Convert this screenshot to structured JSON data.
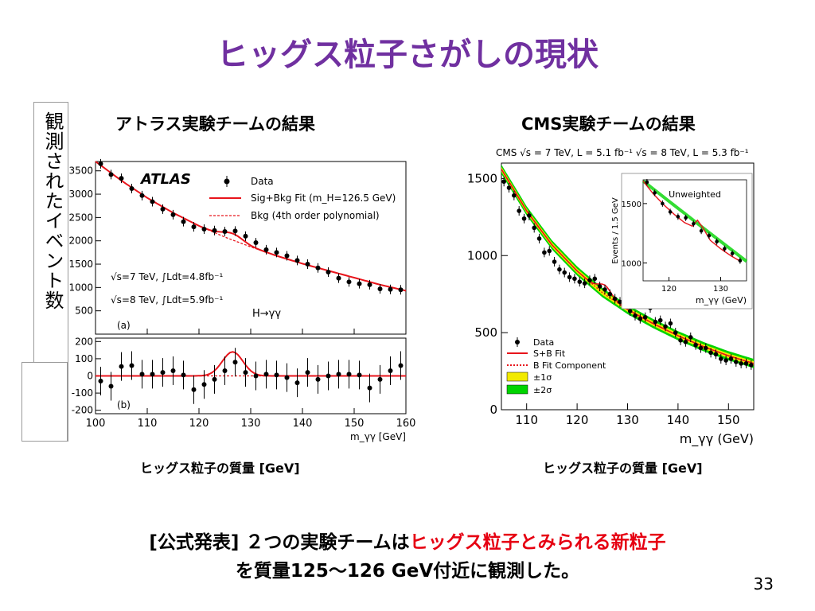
{
  "slide": {
    "title": "ヒッグス粒子さがしの現状",
    "atlas_heading": "アトラス実験チームの結果",
    "cms_heading": "CMS実験チームの結果",
    "y_axis_caption": "観測されたイベント数",
    "x_caption_left": "ヒッグス粒子の質量 [GeV]",
    "x_caption_right": "ヒッグス粒子の質量 [GeV]",
    "note_line1_prefix": "[公式発表] ２つの実験チームは",
    "note_line1_highlight": "ヒッグス粒子とみられる新粒子",
    "note_line2": "を質量125～126 GeV付近に観測した。",
    "page_number": "33",
    "highlight_color": "#e60012",
    "title_color": "#7030a0"
  },
  "chart_data": [
    {
      "type": "scatter",
      "experiment": "ATLAS",
      "label": "ATLAS",
      "panel_a_tag": "(a)",
      "panel_b_tag": "(b)",
      "xlabel": "m_γγ [GeV]",
      "xlim": [
        100,
        160
      ],
      "ylim_a": [
        0,
        3700
      ],
      "ylim_b": [
        -220,
        220
      ],
      "xticks": [
        100,
        110,
        120,
        130,
        140,
        150,
        160
      ],
      "yticks_a": [
        500,
        1000,
        1500,
        2000,
        2500,
        3000,
        3500
      ],
      "yticks_b": [
        -200,
        -100,
        0,
        100,
        200
      ],
      "legend": [
        "Data",
        "Sig+Bkg Fit (m_H=126.5 GeV)",
        "Bkg (4th order polynomial)"
      ],
      "annotations": [
        "√s=7 TeV, ∫Ldt=4.8fb⁻¹",
        "√s=8 TeV, ∫Ldt=5.9fb⁻¹",
        "H→γγ"
      ],
      "colors": {
        "fit": "#e8141b",
        "bkg": "#e8141b",
        "data": "#000000"
      },
      "data_x": [
        101,
        103,
        105,
        107,
        109,
        111,
        113,
        115,
        117,
        119,
        121,
        123,
        125,
        127,
        129,
        131,
        133,
        135,
        137,
        139,
        141,
        143,
        145,
        147,
        149,
        151,
        153,
        155,
        157,
        159
      ],
      "data_y": [
        3650,
        3420,
        3340,
        3120,
        2970,
        2840,
        2680,
        2560,
        2410,
        2300,
        2250,
        2220,
        2200,
        2210,
        2100,
        1960,
        1810,
        1750,
        1680,
        1580,
        1500,
        1420,
        1330,
        1200,
        1120,
        1080,
        1060,
        970,
        960,
        950
      ],
      "bkg_x": [
        100,
        105,
        110,
        115,
        120,
        125,
        130,
        135,
        140,
        145,
        150,
        155,
        160
      ],
      "bkg_y": [
        3700,
        3290,
        2920,
        2600,
        2320,
        2080,
        1870,
        1680,
        1510,
        1360,
        1210,
        1060,
        930
      ],
      "residual_x": [
        101,
        103,
        105,
        107,
        109,
        111,
        113,
        115,
        117,
        119,
        121,
        123,
        125,
        127,
        129,
        131,
        133,
        135,
        137,
        139,
        141,
        143,
        145,
        147,
        149,
        151,
        153,
        155,
        157,
        159
      ],
      "residual_y": [
        -30,
        -60,
        55,
        60,
        10,
        10,
        20,
        30,
        5,
        -80,
        -50,
        -20,
        30,
        80,
        20,
        0,
        10,
        5,
        -10,
        -40,
        20,
        -20,
        0,
        10,
        10,
        5,
        -70,
        -20,
        30,
        60
      ]
    },
    {
      "type": "scatter",
      "experiment": "CMS",
      "header": "CMS   √s = 7 TeV, L = 5.1 fb⁻¹   √s = 8 TeV, L = 5.3 fb⁻¹",
      "xlabel": "m_γγ (GeV)",
      "xlim": [
        105,
        155
      ],
      "ylim": [
        0,
        1600
      ],
      "xticks": [
        110,
        120,
        130,
        140,
        150
      ],
      "yticks": [
        0,
        500,
        1000,
        1500
      ],
      "legend": [
        "Data",
        "S+B Fit",
        "B Fit Component",
        "±1σ",
        "±2σ"
      ],
      "colors": {
        "sb_fit": "#e8141b",
        "b_fit": "#e8141b",
        "band1": "#f2ea00",
        "band2": "#00d400",
        "data": "#000000"
      },
      "data_x": [
        105.5,
        106.5,
        107.5,
        108.5,
        109.5,
        110.5,
        111.5,
        112.5,
        113.5,
        114.5,
        115.5,
        116.5,
        117.5,
        118.5,
        119.5,
        120.5,
        121.5,
        122.5,
        123.5,
        124.5,
        125.5,
        126.5,
        127.5,
        128.5,
        129.5,
        130.5,
        131.5,
        132.5,
        133.5,
        134.5,
        135.5,
        136.5,
        137.5,
        138.5,
        139.5,
        140.5,
        141.5,
        142.5,
        143.5,
        144.5,
        145.5,
        146.5,
        147.5,
        148.5,
        149.5,
        150.5,
        151.5,
        152.5,
        153.5,
        154.5
      ],
      "data_y": [
        1480,
        1440,
        1390,
        1290,
        1240,
        1260,
        1180,
        1110,
        1020,
        1030,
        960,
        910,
        890,
        860,
        850,
        830,
        820,
        840,
        850,
        800,
        780,
        750,
        720,
        700,
        690,
        640,
        610,
        590,
        600,
        660,
        570,
        580,
        540,
        560,
        500,
        450,
        440,
        470,
        420,
        400,
        400,
        370,
        360,
        330,
        320,
        330,
        310,
        300,
        300,
        290
      ],
      "bfit_x": [
        105,
        110,
        115,
        120,
        125,
        130,
        135,
        140,
        145,
        150,
        155
      ],
      "bfit_y": [
        1560,
        1290,
        1070,
        900,
        760,
        650,
        560,
        480,
        410,
        350,
        300
      ],
      "inset": {
        "title": "Unweighted",
        "xlabel": "m_γγ (GeV)",
        "ylabel": "Events / 1.5 GeV",
        "xlim": [
          115,
          135
        ],
        "ylim": [
          850,
          1700
        ],
        "xticks": [
          120,
          130
        ],
        "yticks": [
          1000,
          1500
        ],
        "data_x": [
          115.75,
          117.25,
          118.75,
          120.25,
          121.75,
          123.25,
          124.75,
          126.25,
          127.75,
          129.25,
          130.75,
          132.25,
          133.75
        ],
        "data_y": [
          1680,
          1590,
          1500,
          1430,
          1390,
          1380,
          1330,
          1270,
          1230,
          1180,
          1120,
          1080,
          1020
        ],
        "fit_x": [
          115,
          117,
          119,
          121,
          123,
          124.5,
          125.5,
          126.5,
          128,
          130,
          132,
          134
        ],
        "fit_y": [
          1690,
          1580,
          1490,
          1410,
          1340,
          1310,
          1360,
          1300,
          1190,
          1120,
          1060,
          1010
        ]
      }
    }
  ]
}
